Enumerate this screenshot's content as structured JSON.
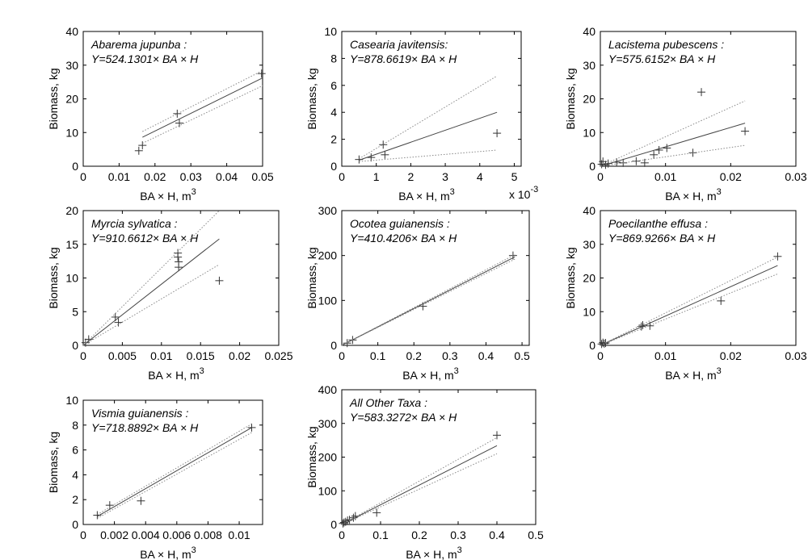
{
  "figure": {
    "background": "#ffffff",
    "axis_color": "#000000",
    "fit_color": "#444444",
    "ci_color": "#888888",
    "point_color": "#333333"
  },
  "chart_data": [
    {
      "type": "scatter",
      "title": "Abarema jupunba :",
      "equation": "Y=524.1301× BA × H",
      "xlabel": "BA × H, m",
      "xlabel_sup": "3",
      "ylabel": "Biomass, kg",
      "xlim": [
        0,
        0.05
      ],
      "ylim": [
        0,
        40
      ],
      "xticks": [
        0,
        0.01,
        0.02,
        0.03,
        0.04,
        0.05
      ],
      "xtick_labels": [
        "0",
        "0.01",
        "0.02",
        "0.03",
        "0.04",
        "0.05"
      ],
      "yticks": [
        0,
        10,
        20,
        30,
        40
      ],
      "ytick_labels": [
        "0",
        "10",
        "20",
        "30",
        "40"
      ],
      "grid": false,
      "series": [
        {
          "kind": "points",
          "x": [
            0.0155,
            0.0165,
            0.0262,
            0.0268,
            0.0497
          ],
          "y": [
            4.6,
            6.2,
            15.6,
            12.8,
            27.5
          ]
        },
        {
          "kind": "fit",
          "x": [
            0.0165,
            0.05
          ],
          "y": [
            8.6,
            26.2
          ]
        },
        {
          "kind": "ci_upper",
          "x": [
            0.0165,
            0.05
          ],
          "y": [
            10.3,
            28.4
          ]
        },
        {
          "kind": "ci_lower",
          "x": [
            0.0165,
            0.05
          ],
          "y": [
            6.8,
            23.9
          ]
        }
      ]
    },
    {
      "type": "scatter",
      "title": "Casearia javitensis:",
      "equation": "Y=878.6619× BA × H",
      "xlabel": "BA × H, m",
      "xlabel_sup": "3",
      "ylabel": "Biomass, kg",
      "multiplier": "x 10",
      "multiplier_sup": "-3",
      "xlim": [
        0,
        5.2
      ],
      "ylim": [
        0,
        10
      ],
      "xticks": [
        0,
        1,
        2,
        3,
        4,
        5
      ],
      "xtick_labels": [
        "0",
        "1",
        "2",
        "3",
        "4",
        "5"
      ],
      "yticks": [
        0,
        2,
        4,
        6,
        8,
        10
      ],
      "ytick_labels": [
        "0",
        "2",
        "4",
        "6",
        "8",
        "10"
      ],
      "grid": false,
      "series": [
        {
          "kind": "points",
          "x": [
            0.5,
            0.85,
            1.2,
            1.25,
            4.5
          ],
          "y": [
            0.5,
            0.65,
            1.6,
            0.85,
            2.45
          ]
        },
        {
          "kind": "fit",
          "x": [
            0.5,
            4.5
          ],
          "y": [
            0.45,
            4.0
          ]
        },
        {
          "kind": "ci_upper",
          "x": [
            0.5,
            4.5
          ],
          "y": [
            0.55,
            6.7
          ]
        },
        {
          "kind": "ci_lower",
          "x": [
            0.5,
            4.5
          ],
          "y": [
            0.35,
            1.2
          ]
        }
      ]
    },
    {
      "type": "scatter",
      "title": "Lacistema pubescens  :",
      "equation": "Y=575.6152× BA × H",
      "xlabel": "BA × H, m",
      "xlabel_sup": "3",
      "ylabel": "Biomass, kg",
      "xlim": [
        0,
        0.03
      ],
      "ylim": [
        0,
        40
      ],
      "xticks": [
        0,
        0.01,
        0.02,
        0.03
      ],
      "xtick_labels": [
        "0",
        "0.01",
        "0.02",
        "0.03"
      ],
      "yticks": [
        0,
        10,
        20,
        30,
        40
      ],
      "ytick_labels": [
        "0",
        "10",
        "20",
        "30",
        "40"
      ],
      "grid": false,
      "series": [
        {
          "kind": "points",
          "x": [
            0.0002,
            0.0004,
            0.0008,
            0.0012,
            0.0025,
            0.0035,
            0.0055,
            0.0068,
            0.0082,
            0.009,
            0.0102,
            0.0142,
            0.0155,
            0.0222
          ],
          "y": [
            0.6,
            1.4,
            0.4,
            0.8,
            1.2,
            1.0,
            1.5,
            1.0,
            3.4,
            4.8,
            5.4,
            4.0,
            22.0,
            10.4
          ]
        },
        {
          "kind": "fit",
          "x": [
            0,
            0.0222
          ],
          "y": [
            0,
            12.8
          ]
        },
        {
          "kind": "ci_upper",
          "x": [
            0,
            0.0222
          ],
          "y": [
            0,
            19.4
          ]
        },
        {
          "kind": "ci_lower",
          "x": [
            0,
            0.0222
          ],
          "y": [
            0,
            6.2
          ]
        }
      ]
    },
    {
      "type": "scatter",
      "title": "Myrcia sylvatica :",
      "equation": "Y=910.6612× BA × H",
      "xlabel": "BA × H, m",
      "xlabel_sup": "3",
      "ylabel": "Biomass, kg",
      "xlim": [
        0,
        0.025
      ],
      "ylim": [
        0,
        20
      ],
      "xticks": [
        0,
        0.005,
        0.01,
        0.015,
        0.02,
        0.025
      ],
      "xtick_labels": [
        "0",
        "0.005",
        "0.01",
        "0.015",
        "0.02",
        "0.025"
      ],
      "yticks": [
        0,
        5,
        10,
        15,
        20
      ],
      "ytick_labels": [
        "0",
        "5",
        "10",
        "15",
        "20"
      ],
      "grid": false,
      "series": [
        {
          "kind": "points",
          "x": [
            0.0003,
            0.0007,
            0.0041,
            0.0045,
            0.0121,
            0.0121,
            0.0122,
            0.0122,
            0.0174
          ],
          "y": [
            0.4,
            0.9,
            4.2,
            3.4,
            13.7,
            13.1,
            12.4,
            11.6,
            9.6
          ]
        },
        {
          "kind": "fit",
          "x": [
            0,
            0.0174
          ],
          "y": [
            0,
            15.8
          ]
        },
        {
          "kind": "ci_upper",
          "x": [
            0,
            0.0174
          ],
          "y": [
            0,
            20.0
          ]
        },
        {
          "kind": "ci_lower",
          "x": [
            0,
            0.0174
          ],
          "y": [
            0,
            12.0
          ]
        }
      ]
    },
    {
      "type": "scatter",
      "title": "Ocotea guianensis :",
      "equation": "Y=410.4206× BA × H",
      "xlabel": "BA × H, m",
      "xlabel_sup": "3",
      "ylabel": "Biomass, kg",
      "xlim": [
        0,
        0.52
      ],
      "ylim": [
        0,
        300
      ],
      "xticks": [
        0,
        0.1,
        0.2,
        0.3,
        0.4,
        0.5
      ],
      "xtick_labels": [
        "0",
        "0.1",
        "0.2",
        "0.3",
        "0.4",
        "0.5"
      ],
      "yticks": [
        0,
        100,
        200,
        300
      ],
      "ytick_labels": [
        "0",
        "100",
        "200",
        "300"
      ],
      "grid": false,
      "series": [
        {
          "kind": "points",
          "x": [
            0.015,
            0.03,
            0.225,
            0.475
          ],
          "y": [
            5,
            12,
            87,
            200
          ]
        },
        {
          "kind": "fit",
          "x": [
            0,
            0.48
          ],
          "y": [
            0,
            197
          ]
        },
        {
          "kind": "ci_upper",
          "x": [
            0,
            0.48
          ],
          "y": [
            0,
            202
          ]
        },
        {
          "kind": "ci_lower",
          "x": [
            0,
            0.48
          ],
          "y": [
            0,
            192
          ]
        }
      ]
    },
    {
      "type": "scatter",
      "title": "Poecilanthe effusa :",
      "equation": "Y=869.9266× BA × H",
      "xlabel": "BA × H, m",
      "xlabel_sup": "3",
      "ylabel": "Biomass, kg",
      "xlim": [
        0,
        0.03
      ],
      "ylim": [
        0,
        40
      ],
      "xticks": [
        0,
        0.01,
        0.02,
        0.03
      ],
      "xtick_labels": [
        "0",
        "0.01",
        "0.02",
        "0.03"
      ],
      "yticks": [
        0,
        10,
        20,
        30,
        40
      ],
      "ytick_labels": [
        "0",
        "10",
        "20",
        "30",
        "40"
      ],
      "grid": false,
      "series": [
        {
          "kind": "points",
          "x": [
            0.0002,
            0.0004,
            0.0006,
            0.0008,
            0.0063,
            0.0065,
            0.0076,
            0.0185,
            0.0272
          ],
          "y": [
            0.4,
            0.8,
            0.5,
            0.7,
            5.6,
            6.0,
            5.8,
            13.2,
            26.4
          ]
        },
        {
          "kind": "fit",
          "x": [
            0,
            0.0272
          ],
          "y": [
            0,
            23.7
          ]
        },
        {
          "kind": "ci_upper",
          "x": [
            0,
            0.0272
          ],
          "y": [
            0,
            26.2
          ]
        },
        {
          "kind": "ci_lower",
          "x": [
            0,
            0.0272
          ],
          "y": [
            0,
            21.2
          ]
        }
      ]
    },
    {
      "type": "scatter",
      "title": "Vismia guianensis :",
      "equation": "Y=718.8892× BA × H",
      "xlabel": "BA × H, m",
      "xlabel_sup": "3",
      "ylabel": "Biomass, kg",
      "xlim": [
        0,
        0.0115
      ],
      "ylim": [
        0,
        10
      ],
      "xticks": [
        0,
        0.002,
        0.004,
        0.006,
        0.008,
        0.01
      ],
      "xtick_labels": [
        "0",
        "0.002",
        "0.004",
        "0.006",
        "0.008",
        "0.01"
      ],
      "yticks": [
        0,
        2,
        4,
        6,
        8,
        10
      ],
      "ytick_labels": [
        "0",
        "2",
        "4",
        "6",
        "8",
        "10"
      ],
      "grid": false,
      "series": [
        {
          "kind": "points",
          "x": [
            0.0009,
            0.0017,
            0.0037,
            0.0108
          ],
          "y": [
            0.75,
            1.55,
            1.9,
            7.8
          ]
        },
        {
          "kind": "fit",
          "x": [
            0.0009,
            0.0108
          ],
          "y": [
            0.65,
            7.8
          ]
        },
        {
          "kind": "ci_upper",
          "x": [
            0.0009,
            0.0108
          ],
          "y": [
            0.8,
            8.1
          ]
        },
        {
          "kind": "ci_lower",
          "x": [
            0.0009,
            0.0108
          ],
          "y": [
            0.5,
            7.4
          ]
        }
      ]
    },
    {
      "type": "scatter",
      "title": "All Other Taxa :",
      "equation": "Y=583.3272× BA × H",
      "xlabel": "BA × H, m",
      "xlabel_sup": "3",
      "ylabel": "Biomass, kg",
      "xlim": [
        0,
        0.5
      ],
      "ylim": [
        0,
        400
      ],
      "xticks": [
        0,
        0.1,
        0.2,
        0.3,
        0.4,
        0.5
      ],
      "xtick_labels": [
        "0",
        "0.1",
        "0.2",
        "0.3",
        "0.4",
        "0.5"
      ],
      "yticks": [
        0,
        100,
        200,
        300,
        400
      ],
      "ytick_labels": [
        "0",
        "100",
        "200",
        "300",
        "400"
      ],
      "grid": false,
      "series": [
        {
          "kind": "points",
          "x": [
            0.003,
            0.006,
            0.01,
            0.015,
            0.02,
            0.03,
            0.035,
            0.09,
            0.4
          ],
          "y": [
            3,
            6,
            8,
            12,
            14,
            20,
            25,
            35,
            265
          ]
        },
        {
          "kind": "fit",
          "x": [
            0,
            0.4
          ],
          "y": [
            0,
            234
          ]
        },
        {
          "kind": "ci_upper",
          "x": [
            0,
            0.4
          ],
          "y": [
            0,
            258
          ]
        },
        {
          "kind": "ci_lower",
          "x": [
            0,
            0.4
          ],
          "y": [
            0,
            210
          ]
        }
      ]
    }
  ]
}
